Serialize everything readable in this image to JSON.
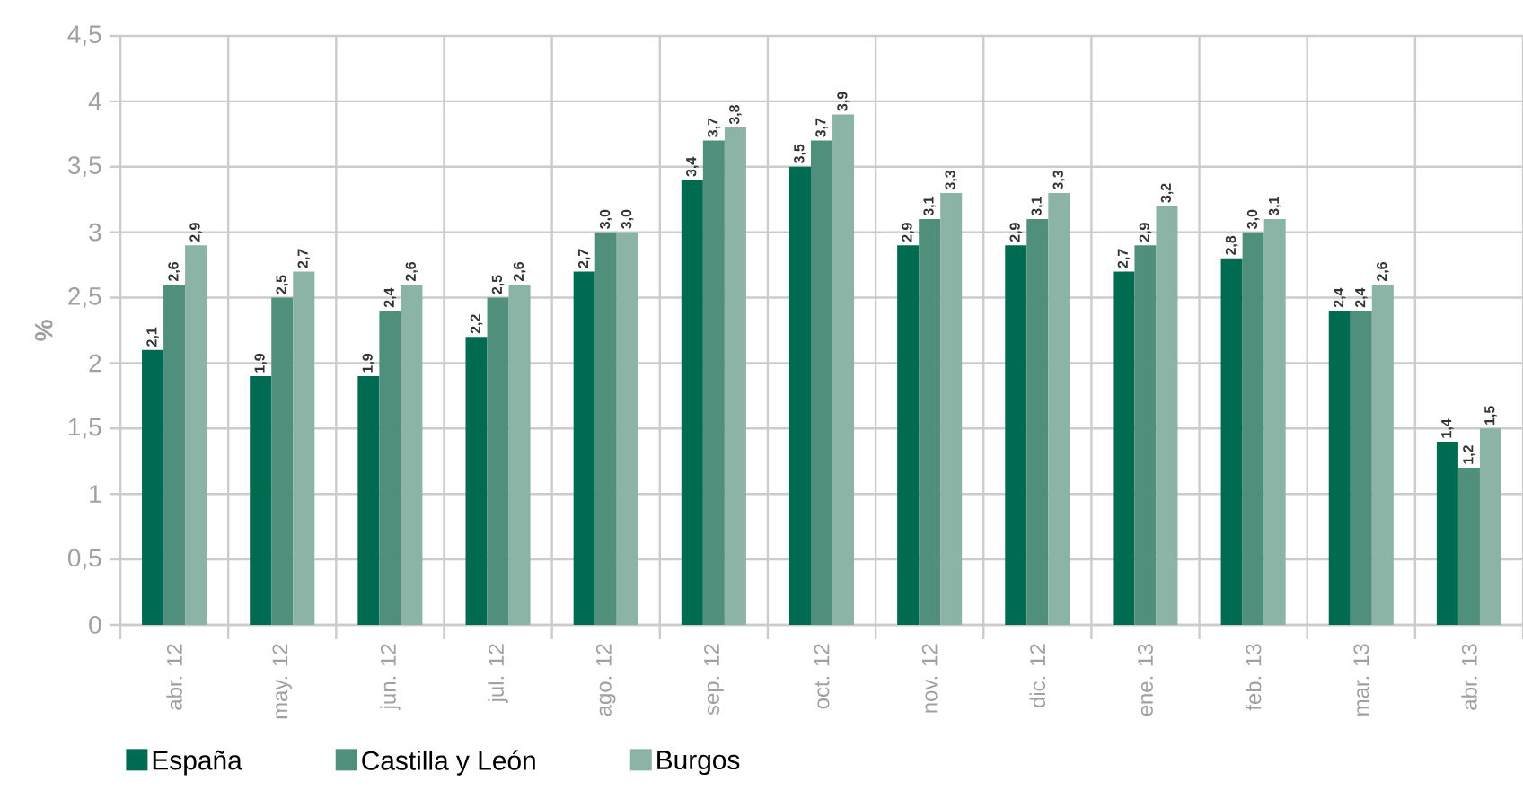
{
  "chart_data": {
    "type": "bar",
    "ylabel": "%",
    "categories": [
      "abr. 12",
      "may. 12",
      "jun. 12",
      "jul. 12",
      "ago. 12",
      "sep. 12",
      "oct. 12",
      "nov. 12",
      "dic. 12",
      "ene. 13",
      "feb. 13",
      "mar. 13",
      "abr. 13"
    ],
    "series": [
      {
        "name": "España",
        "color": "#006b50",
        "values": [
          2.1,
          1.9,
          1.9,
          2.2,
          2.7,
          3.4,
          3.5,
          2.9,
          2.9,
          2.7,
          2.8,
          2.4,
          1.4
        ],
        "value_labels": [
          "2,1",
          "1,9",
          "1,9",
          "2,2",
          "2,7",
          "3,4",
          "3,5",
          "2,9",
          "2,9",
          "2,7",
          "2,8",
          "2,4",
          "1,4"
        ]
      },
      {
        "name": "Castilla y León",
        "color": "#4f8f7b",
        "values": [
          2.6,
          2.5,
          2.4,
          2.5,
          3.0,
          3.7,
          3.7,
          3.1,
          3.1,
          2.9,
          3.0,
          2.4,
          1.2
        ],
        "value_labels": [
          "2,6",
          "2,5",
          "2,4",
          "2,5",
          "3,0",
          "3,7",
          "3,7",
          "3,1",
          "3,1",
          "2,9",
          "3,0",
          "2,4",
          "1,2"
        ]
      },
      {
        "name": "Burgos",
        "color": "#8bb3a6",
        "values": [
          2.9,
          2.7,
          2.6,
          2.6,
          3.0,
          3.8,
          3.9,
          3.3,
          3.3,
          3.2,
          3.1,
          2.6,
          1.5
        ],
        "value_labels": [
          "2,9",
          "2,7",
          "2,6",
          "2,6",
          "3,0",
          "3,8",
          "3,9",
          "3,3",
          "3,3",
          "3,2",
          "3,1",
          "2,6",
          "1,5"
        ]
      }
    ],
    "ylim": [
      0,
      4.5
    ],
    "yticks": [
      0,
      {
        "value": 0.5,
        "label": "0,5"
      },
      1,
      {
        "value": 1.5,
        "label": "1,5"
      },
      2,
      {
        "value": 2.5,
        "label": "2,5"
      },
      3,
      {
        "value": 3.5,
        "label": "3,5"
      },
      4,
      {
        "value": 4.5,
        "label": "4,5"
      }
    ],
    "grid": true,
    "legend": "bottom"
  }
}
